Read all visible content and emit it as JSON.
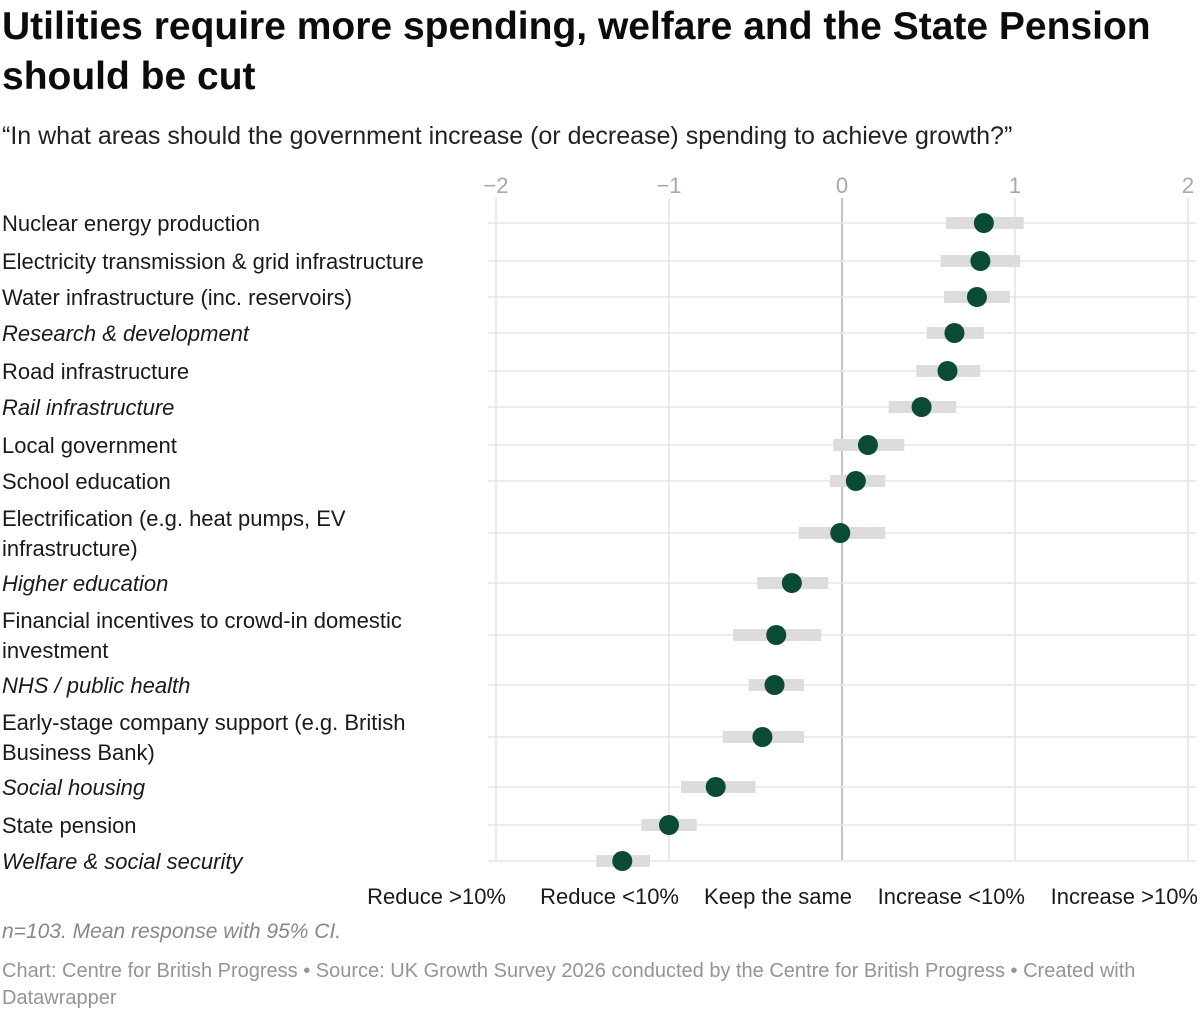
{
  "header": {
    "title": "Utilities require more spending, welfare and the State Pension should be cut",
    "subtitle": "“In what areas should the government increase (or decrease) spending to achieve growth?”"
  },
  "chart_data": {
    "type": "dot-range",
    "xlim": [
      -2,
      2
    ],
    "xticks": [
      -2,
      -1,
      0,
      1,
      2
    ],
    "xtick_labels": [
      "−2",
      "−1",
      "0",
      "1",
      "2"
    ],
    "x_category_labels": [
      "Reduce >10%",
      "Reduce <10%",
      "Keep the same",
      "Increase <10%",
      "Increase >10%"
    ],
    "grid": true,
    "dot_color": "#0b4a36",
    "ci_color": "#dcdcdc",
    "rows": [
      {
        "label": "Nuclear energy production",
        "italic": false,
        "mean": 0.82,
        "ci": [
          0.6,
          1.05
        ]
      },
      {
        "label": "Electricity transmission & grid infrastructure",
        "italic": false,
        "mean": 0.8,
        "ci": [
          0.57,
          1.03
        ]
      },
      {
        "label": "Water infrastructure (inc. reservoirs)",
        "italic": false,
        "mean": 0.78,
        "ci": [
          0.59,
          0.97
        ]
      },
      {
        "label": "Research & development",
        "italic": true,
        "mean": 0.65,
        "ci": [
          0.49,
          0.82
        ]
      },
      {
        "label": "Road infrastructure",
        "italic": false,
        "mean": 0.61,
        "ci": [
          0.43,
          0.8
        ]
      },
      {
        "label": "Rail infrastructure",
        "italic": true,
        "mean": 0.46,
        "ci": [
          0.27,
          0.66
        ]
      },
      {
        "label": "Local government",
        "italic": false,
        "mean": 0.15,
        "ci": [
          -0.05,
          0.36
        ]
      },
      {
        "label": "School education",
        "italic": false,
        "mean": 0.08,
        "ci": [
          -0.07,
          0.25
        ]
      },
      {
        "label": "Electrification (e.g. heat pumps, EV infrastructure)",
        "lines": [
          "Electrification (e.g. heat pumps, EV",
          "infrastructure)"
        ],
        "italic": false,
        "mean": -0.01,
        "ci": [
          -0.25,
          0.25
        ]
      },
      {
        "label": "Higher education",
        "italic": true,
        "mean": -0.29,
        "ci": [
          -0.49,
          -0.08
        ]
      },
      {
        "label": "Financial incentives to crowd-in domestic investment",
        "lines": [
          "Financial incentives to crowd-in domestic",
          "investment"
        ],
        "italic": false,
        "mean": -0.38,
        "ci": [
          -0.63,
          -0.12
        ]
      },
      {
        "label": "NHS / public health",
        "italic": true,
        "mean": -0.39,
        "ci": [
          -0.54,
          -0.22
        ]
      },
      {
        "label": "Early-stage company support (e.g. British Business Bank)",
        "lines": [
          "Early-stage company support (e.g. British",
          "Business Bank)"
        ],
        "italic": false,
        "mean": -0.46,
        "ci": [
          -0.69,
          -0.22
        ]
      },
      {
        "label": "Social housing",
        "italic": true,
        "mean": -0.73,
        "ci": [
          -0.93,
          -0.5
        ]
      },
      {
        "label": "State pension",
        "italic": false,
        "mean": -1.0,
        "ci": [
          -1.16,
          -0.84
        ]
      },
      {
        "label": "Welfare & social security",
        "italic": true,
        "mean": -1.27,
        "ci": [
          -1.42,
          -1.11
        ]
      }
    ]
  },
  "notes": {
    "caption": "n=103. Mean response with 95% CI.",
    "footer": "Chart: Centre for British Progress • Source: UK Growth Survey 2026 conducted by the Centre for British Progress • Created with Datawrapper"
  }
}
